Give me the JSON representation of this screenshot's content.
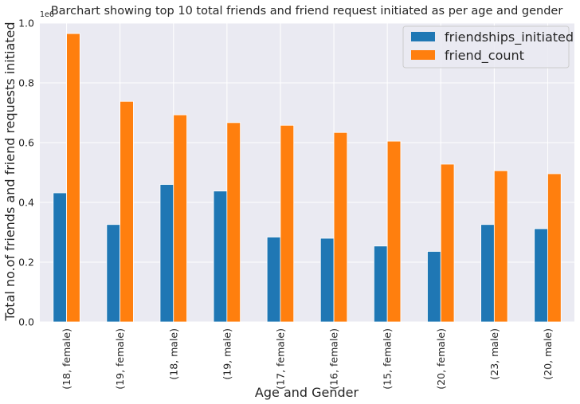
{
  "chart_data": {
    "type": "bar",
    "title": "Barchart showing top 10 total friends and friend request initiated as per age and gender",
    "xlabel": "Age and Gender",
    "ylabel": "Total no.of friends and friend requests initiated",
    "y_exponent_label": "1e6",
    "ylim": [
      0,
      1.0
    ],
    "yticks": [
      "0.0",
      "0.2",
      "0.4",
      "0.6",
      "0.8",
      "1.0"
    ],
    "grid": true,
    "legend_position": "top-right",
    "categories": [
      "(18, female)",
      "(19, female)",
      "(18, male)",
      "(19, male)",
      "(17, female)",
      "(16, female)",
      "(15, female)",
      "(20, female)",
      "(23, male)",
      "(20, male)"
    ],
    "series": [
      {
        "name": "friendships_initiated",
        "color": "#1f77b4",
        "values": [
          0.432,
          0.326,
          0.46,
          0.438,
          0.284,
          0.28,
          0.254,
          0.236,
          0.326,
          0.312
        ]
      },
      {
        "name": "friend_count",
        "color": "#ff7f0e",
        "values": [
          0.965,
          0.738,
          0.693,
          0.667,
          0.658,
          0.634,
          0.605,
          0.528,
          0.506,
          0.496
        ]
      }
    ],
    "plot_background": "#eaeaf2",
    "grid_color": "#ffffff"
  }
}
